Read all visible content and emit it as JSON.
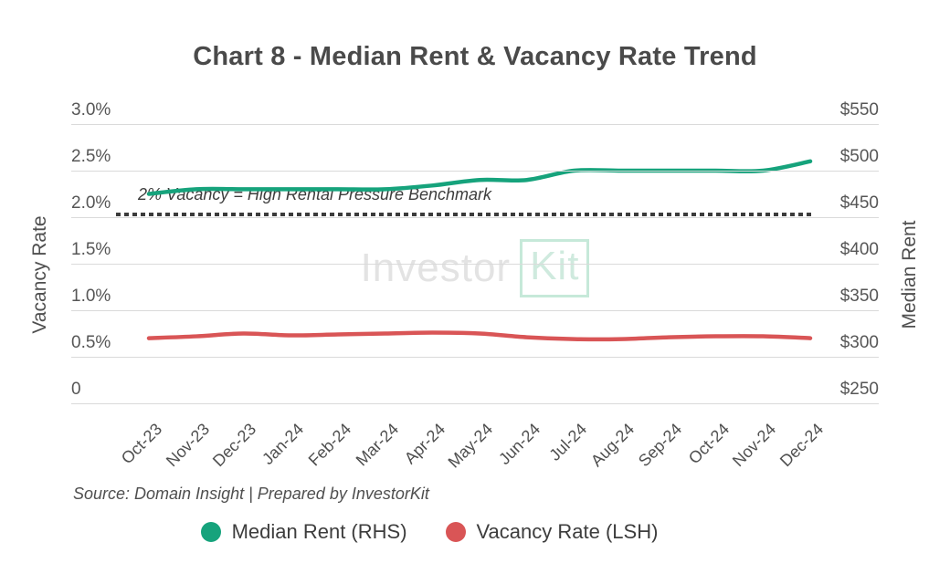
{
  "title": "Chart 8 - Median Rent & Vacancy Rate Trend",
  "left_axis": {
    "label": "Vacancy Rate",
    "ticks": [
      "3.0%",
      "2.5%",
      "2.0%",
      "1.5%",
      "1.0%",
      "0.5%",
      "0"
    ]
  },
  "right_axis": {
    "label": "Median Rent",
    "ticks": [
      "$550",
      "$500",
      "$450",
      "$400",
      "$350",
      "$300",
      "$250"
    ]
  },
  "benchmark": {
    "label": "2% Vacancy = High Rental Pressure Benchmark",
    "value_pct": 2.0,
    "line_color": "#3b3b3b"
  },
  "watermark": {
    "part1": "Investor",
    "part2": "Kit"
  },
  "source": "Source: Domain Insight | Prepared by InvestorKit",
  "legend": [
    {
      "label": "Median Rent (RHS)",
      "color": "#16a37c"
    },
    {
      "label": "Vacancy Rate (LSH)",
      "color": "#d95556"
    }
  ],
  "colors": {
    "median_rent": "#16a37c",
    "vacancy_rate": "#d95556",
    "gridline": "#dadada",
    "title_text": "#4a4a4a"
  },
  "chart_data": {
    "type": "line",
    "categories": [
      "Oct-23",
      "Nov-23",
      "Dec-23",
      "Jan-24",
      "Feb-24",
      "Mar-24",
      "Apr-24",
      "May-24",
      "Jun-24",
      "Jul-24",
      "Aug-24",
      "Sep-24",
      "Oct-24",
      "Nov-24",
      "Dec-24"
    ],
    "series": [
      {
        "name": "Median Rent (RHS)",
        "axis": "right",
        "color": "#16a37c",
        "values": [
          475,
          480,
          480,
          480,
          480,
          480,
          484,
          490,
          490,
          500,
          500,
          500,
          500,
          500,
          510
        ]
      },
      {
        "name": "Vacancy Rate (LSH)",
        "axis": "left",
        "color": "#d95556",
        "values": [
          0.7,
          0.72,
          0.75,
          0.73,
          0.74,
          0.75,
          0.76,
          0.75,
          0.71,
          0.69,
          0.69,
          0.71,
          0.72,
          0.72,
          0.7
        ]
      }
    ],
    "left_ylim": [
      0,
      3.0
    ],
    "right_ylim": [
      250,
      550
    ],
    "benchmark_line": {
      "axis": "left",
      "value": 2.0
    },
    "title": "Chart 8 - Median Rent & Vacancy Rate Trend",
    "xlabel": "",
    "ylabel_left": "Vacancy Rate",
    "ylabel_right": "Median Rent",
    "legend_position": "bottom",
    "grid": true
  }
}
